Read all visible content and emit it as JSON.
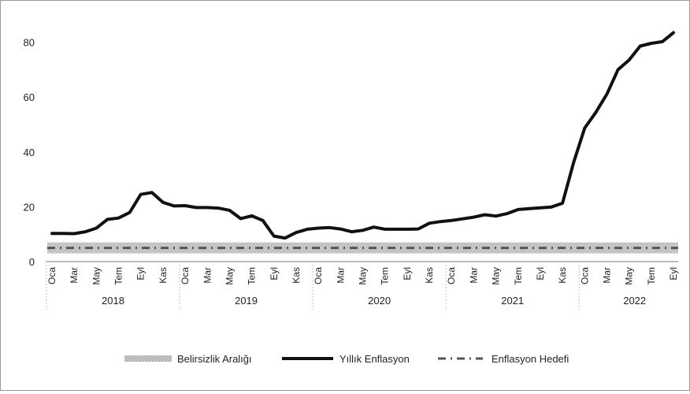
{
  "chart_data": {
    "type": "line",
    "title": "",
    "xlabel": "",
    "ylabel": "",
    "ylim": [
      0,
      85
    ],
    "yticks": [
      0,
      20,
      40,
      60,
      80
    ],
    "years": [
      "2018",
      "2019",
      "2020",
      "2021",
      "2022"
    ],
    "month_tick_labels": [
      "Oca",
      "Mar",
      "May",
      "Tem",
      "Eyl",
      "Kas"
    ],
    "x_start": "2018-01",
    "x_end": "2022-09",
    "grid": false,
    "legend_position": "bottom",
    "series": [
      {
        "name": "Yıllık Enflasyon",
        "color": "#111111",
        "style": "solid",
        "values": [
          10.3,
          10.3,
          10.2,
          10.9,
          12.2,
          15.4,
          15.9,
          17.9,
          24.5,
          25.2,
          21.6,
          20.3,
          20.4,
          19.7,
          19.7,
          19.5,
          18.7,
          15.7,
          16.7,
          15.0,
          9.3,
          8.6,
          10.6,
          11.8,
          12.2,
          12.4,
          11.9,
          10.9,
          11.4,
          12.6,
          11.8,
          11.8,
          11.8,
          11.9,
          14.0,
          14.6,
          15.0,
          15.6,
          16.2,
          17.1,
          16.6,
          17.5,
          19.0,
          19.3,
          19.6,
          19.9,
          21.3,
          36.1,
          48.7,
          54.4,
          61.1,
          70.0,
          73.5,
          78.6,
          79.6,
          80.2,
          83.5
        ]
      },
      {
        "name": "Enflasyon Hedefi",
        "color": "#555555",
        "style": "dash-dot",
        "value": 5
      }
    ],
    "bands": [
      {
        "name": "Belirsizlik Aralığı",
        "color": "#b0b0b0",
        "low": 3,
        "high": 7
      }
    ]
  }
}
